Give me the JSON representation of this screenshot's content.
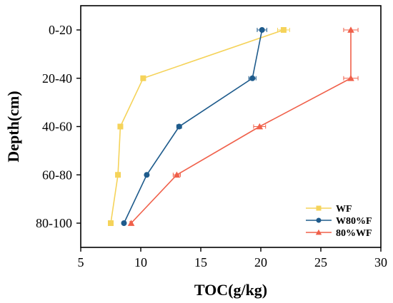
{
  "chart_data": {
    "type": "line",
    "xlabel": "TOC(g/kg)",
    "ylabel": "Depth(cm)",
    "xlim": [
      5,
      30
    ],
    "x_ticks": [
      5,
      10,
      15,
      20,
      25,
      30
    ],
    "categories": [
      "0-20",
      "20-40",
      "40-60",
      "60-80",
      "80-100"
    ],
    "grid": false,
    "legend_position": "bottom-right",
    "series": [
      {
        "name": "WF",
        "color": "#F5D35A",
        "marker": "square",
        "values": [
          21.9,
          10.2,
          8.3,
          8.1,
          7.5
        ],
        "errors": [
          0.5,
          0.2,
          0.1,
          0.1,
          0.1
        ]
      },
      {
        "name": "W80%F",
        "color": "#1E5B8C",
        "marker": "circle",
        "values": [
          20.1,
          19.3,
          13.2,
          10.5,
          8.6
        ],
        "errors": [
          0.4,
          0.3,
          0.2,
          0.1,
          0.1
        ]
      },
      {
        "name": "80%WF",
        "color": "#F0604A",
        "marker": "triangle",
        "values": [
          27.5,
          27.5,
          19.9,
          13.0,
          9.2
        ],
        "errors": [
          0.6,
          0.6,
          0.5,
          0.3,
          0.1
        ]
      }
    ]
  }
}
